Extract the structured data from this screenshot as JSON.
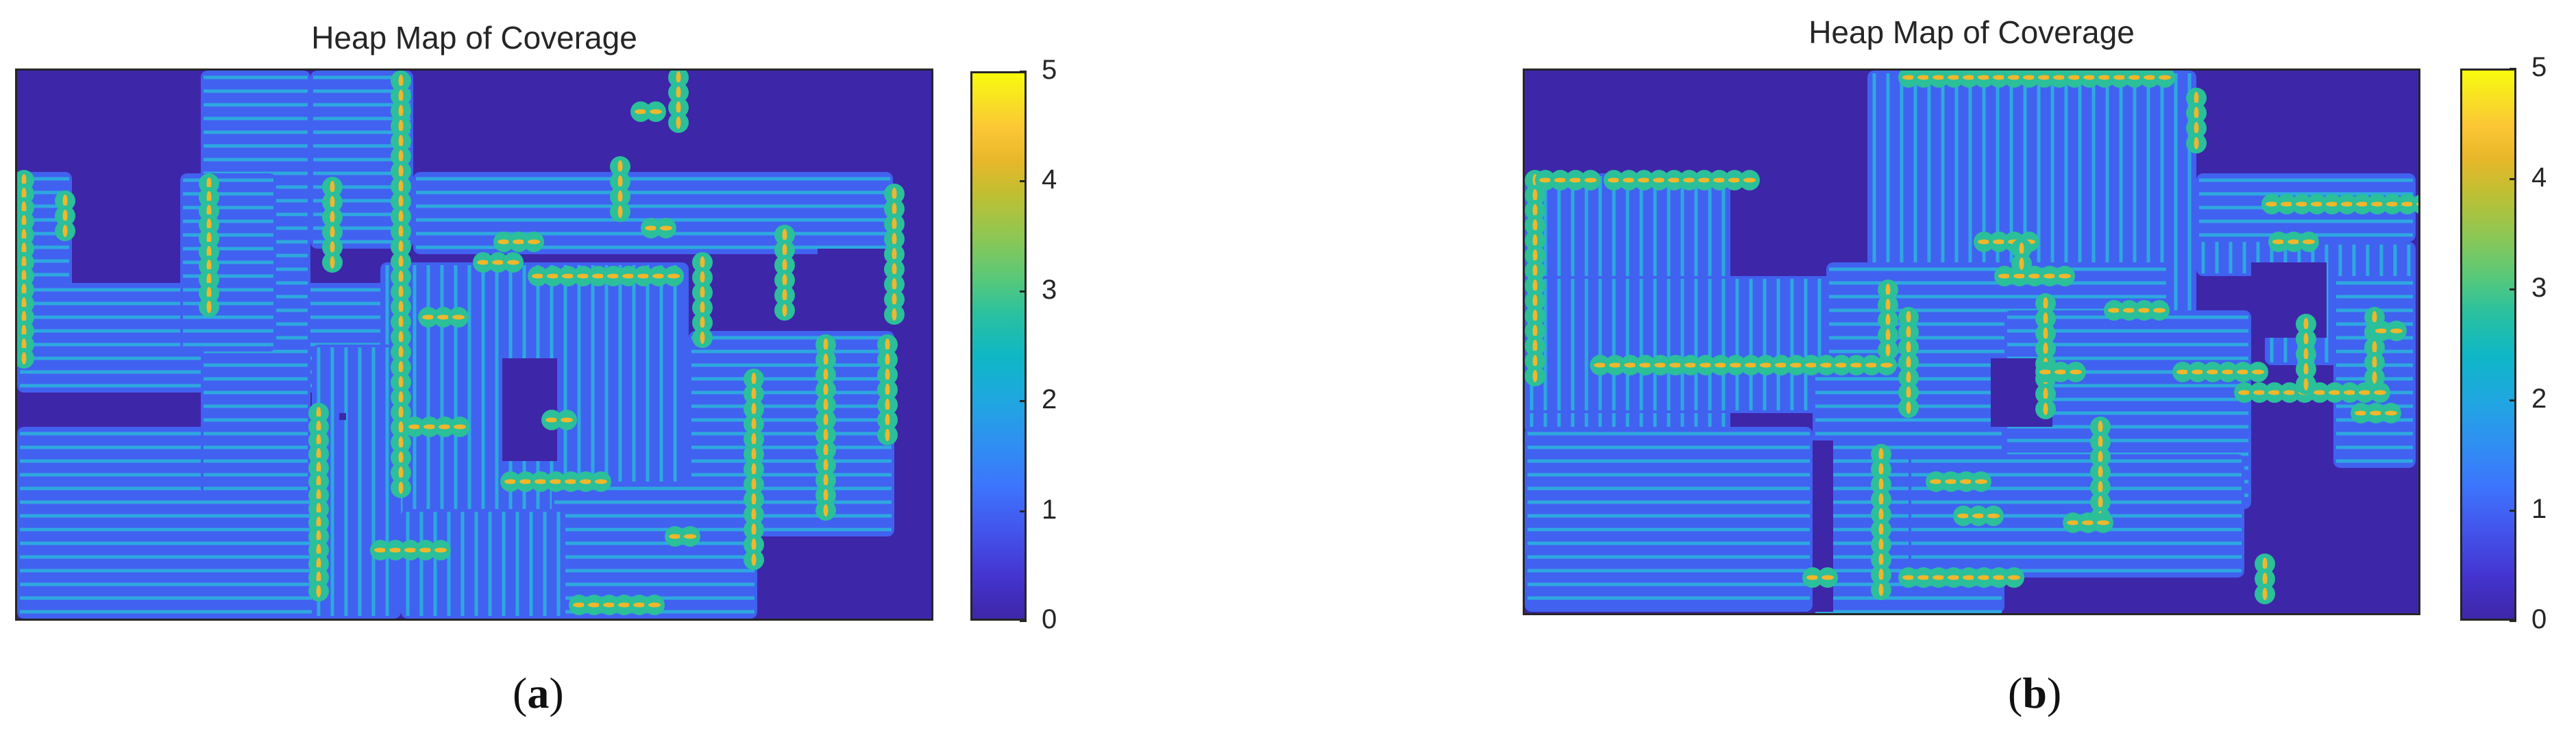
{
  "chart_data": [
    {
      "type": "heatmap",
      "title": "Heap Map of Coverage",
      "caption_label": "a",
      "colorbar": {
        "min": 0,
        "max": 5,
        "ticks": [
          "0",
          "1",
          "2",
          "3",
          "4",
          "5"
        ],
        "colormap": "parula"
      },
      "colors": {
        "zero": "#3e26a8",
        "one": "#4161f0",
        "two": "#2ea8df",
        "three": "#2bbf9a",
        "four": "#f0b62c",
        "five": "#f9fb0e"
      }
    },
    {
      "type": "heatmap",
      "title": "Heap Map of Coverage",
      "caption_label": "b",
      "colorbar": {
        "min": 0,
        "max": 5,
        "ticks": [
          "0",
          "1",
          "2",
          "3",
          "4",
          "5"
        ],
        "colormap": "parula"
      },
      "colors": {
        "zero": "#3e26a8",
        "one": "#4161f0",
        "two": "#2ea8df",
        "three": "#2bbf9a",
        "four": "#f0b62c",
        "five": "#f9fb0e"
      }
    }
  ]
}
